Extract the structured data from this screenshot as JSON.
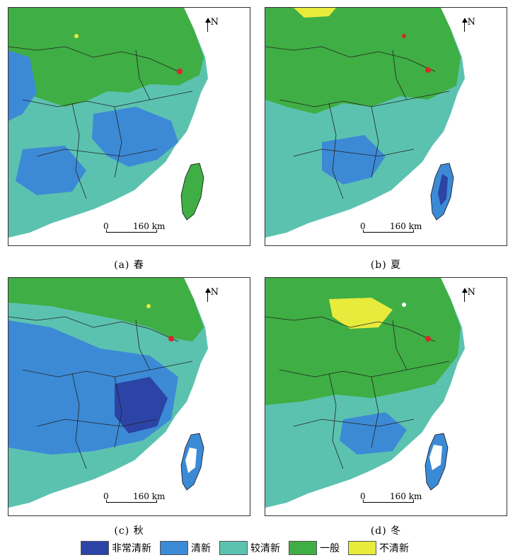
{
  "legend": {
    "items": [
      {
        "label": "非常清新",
        "color": "#2b44a6"
      },
      {
        "label": "清新",
        "color": "#3c8ad6"
      },
      {
        "label": "较清新",
        "color": "#5cc2b0"
      },
      {
        "label": "一般",
        "color": "#3fae44"
      },
      {
        "label": "不清新",
        "color": "#e8ea3c"
      }
    ]
  },
  "map_common": {
    "north_label": "N",
    "scale_zero": "0",
    "scale_distance": "160 km",
    "land_base_color": "#5cc2b0",
    "sea_color": "#ffffff",
    "hotspot_color": "#d9282b"
  },
  "panels": [
    {
      "id": "a",
      "caption": "(a) 春"
    },
    {
      "id": "b",
      "caption": "(b) 夏"
    },
    {
      "id": "c",
      "caption": "(c) 秋"
    },
    {
      "id": "d",
      "caption": "(d) 冬"
    }
  ]
}
